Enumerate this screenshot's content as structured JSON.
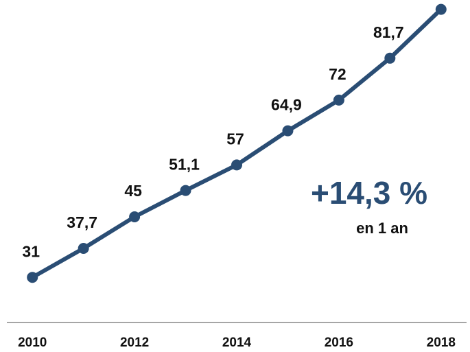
{
  "chart_data": {
    "type": "line",
    "x": [
      2010,
      2011,
      2012,
      2013,
      2014,
      2015,
      2016,
      2017,
      2018
    ],
    "series": [
      {
        "color": "#2a4d74",
        "values": [
          31,
          37.7,
          45,
          51.1,
          57,
          64.9,
          72,
          81.7,
          93
        ],
        "value_labels": [
          "31",
          "37,7",
          "45",
          "51,1",
          "57",
          "64,9",
          "72",
          "81,7",
          null
        ]
      }
    ],
    "xlim": [
      2009.5,
      2018.5
    ],
    "xticks": [
      2010,
      2012,
      2014,
      2016,
      2018
    ],
    "ylim": [
      25,
      95
    ],
    "annotations": [
      "+14,3 %",
      "en 1 an"
    ]
  }
}
